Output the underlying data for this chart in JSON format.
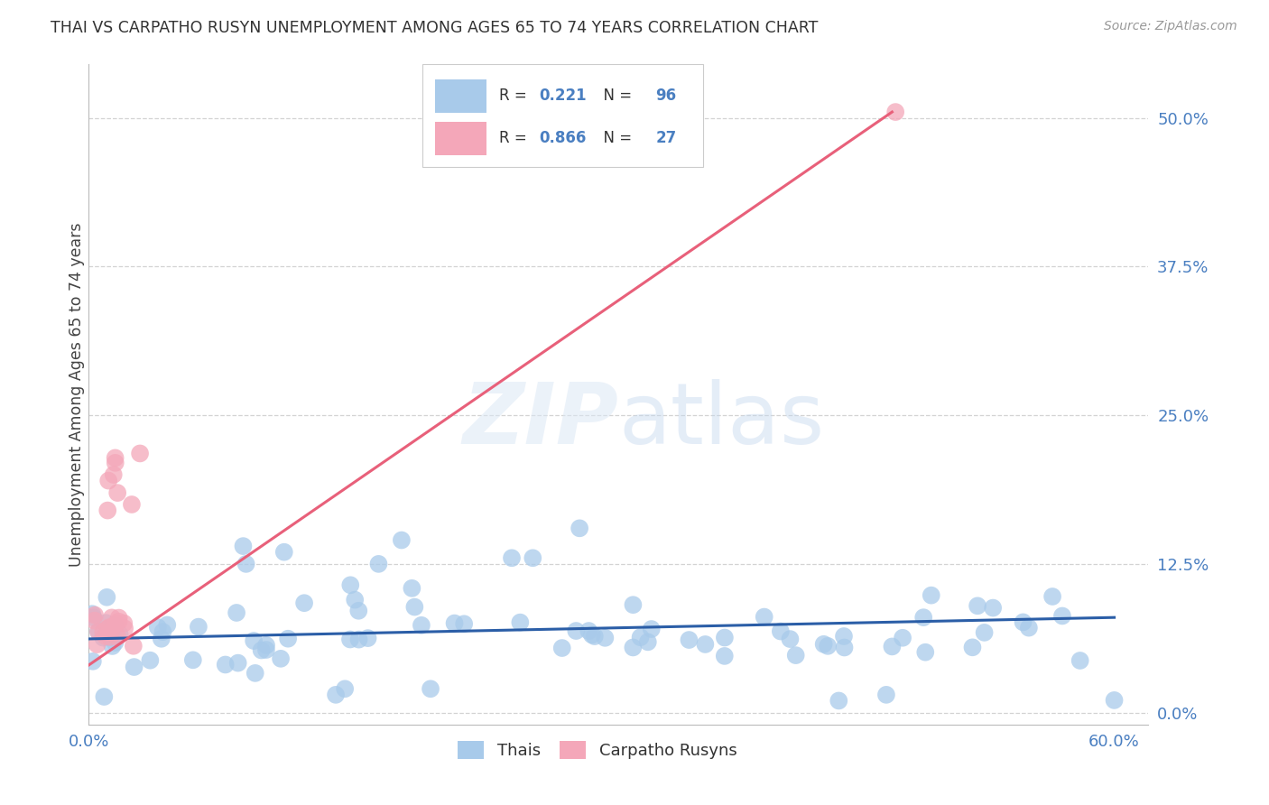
{
  "title": "THAI VS CARPATHO RUSYN UNEMPLOYMENT AMONG AGES 65 TO 74 YEARS CORRELATION CHART",
  "source": "Source: ZipAtlas.com",
  "ylabel": "Unemployment Among Ages 65 to 74 years",
  "xlim": [
    0.0,
    0.62
  ],
  "ylim": [
    -0.01,
    0.545
  ],
  "yticks": [
    0.0,
    0.125,
    0.25,
    0.375,
    0.5
  ],
  "ytick_labels": [
    "0.0%",
    "12.5%",
    "25.0%",
    "37.5%",
    "50.0%"
  ],
  "xtick_positions": [
    0.0,
    0.1,
    0.2,
    0.3,
    0.4,
    0.5,
    0.6
  ],
  "xtick_labels": [
    "0.0%",
    "",
    "",
    "",
    "",
    "",
    "60.0%"
  ],
  "thai_R": 0.221,
  "thai_N": 96,
  "rusyn_R": 0.866,
  "rusyn_N": 27,
  "thai_color": "#a8caea",
  "rusyn_color": "#f4a7b9",
  "thai_line_color": "#2b5ea7",
  "rusyn_line_color": "#e8607a",
  "background_color": "#ffffff",
  "grid_color": "#c8c8c8",
  "legend_label_thai": "Thais",
  "legend_label_rusyn": "Carpatho Rusyns",
  "thai_line_x0": 0.0,
  "thai_line_x1": 0.6,
  "thai_line_y0": 0.062,
  "thai_line_y1": 0.08,
  "rusyn_line_x0": 0.0,
  "rusyn_line_x1": 0.47,
  "rusyn_line_y0": 0.04,
  "rusyn_line_y1": 0.505
}
